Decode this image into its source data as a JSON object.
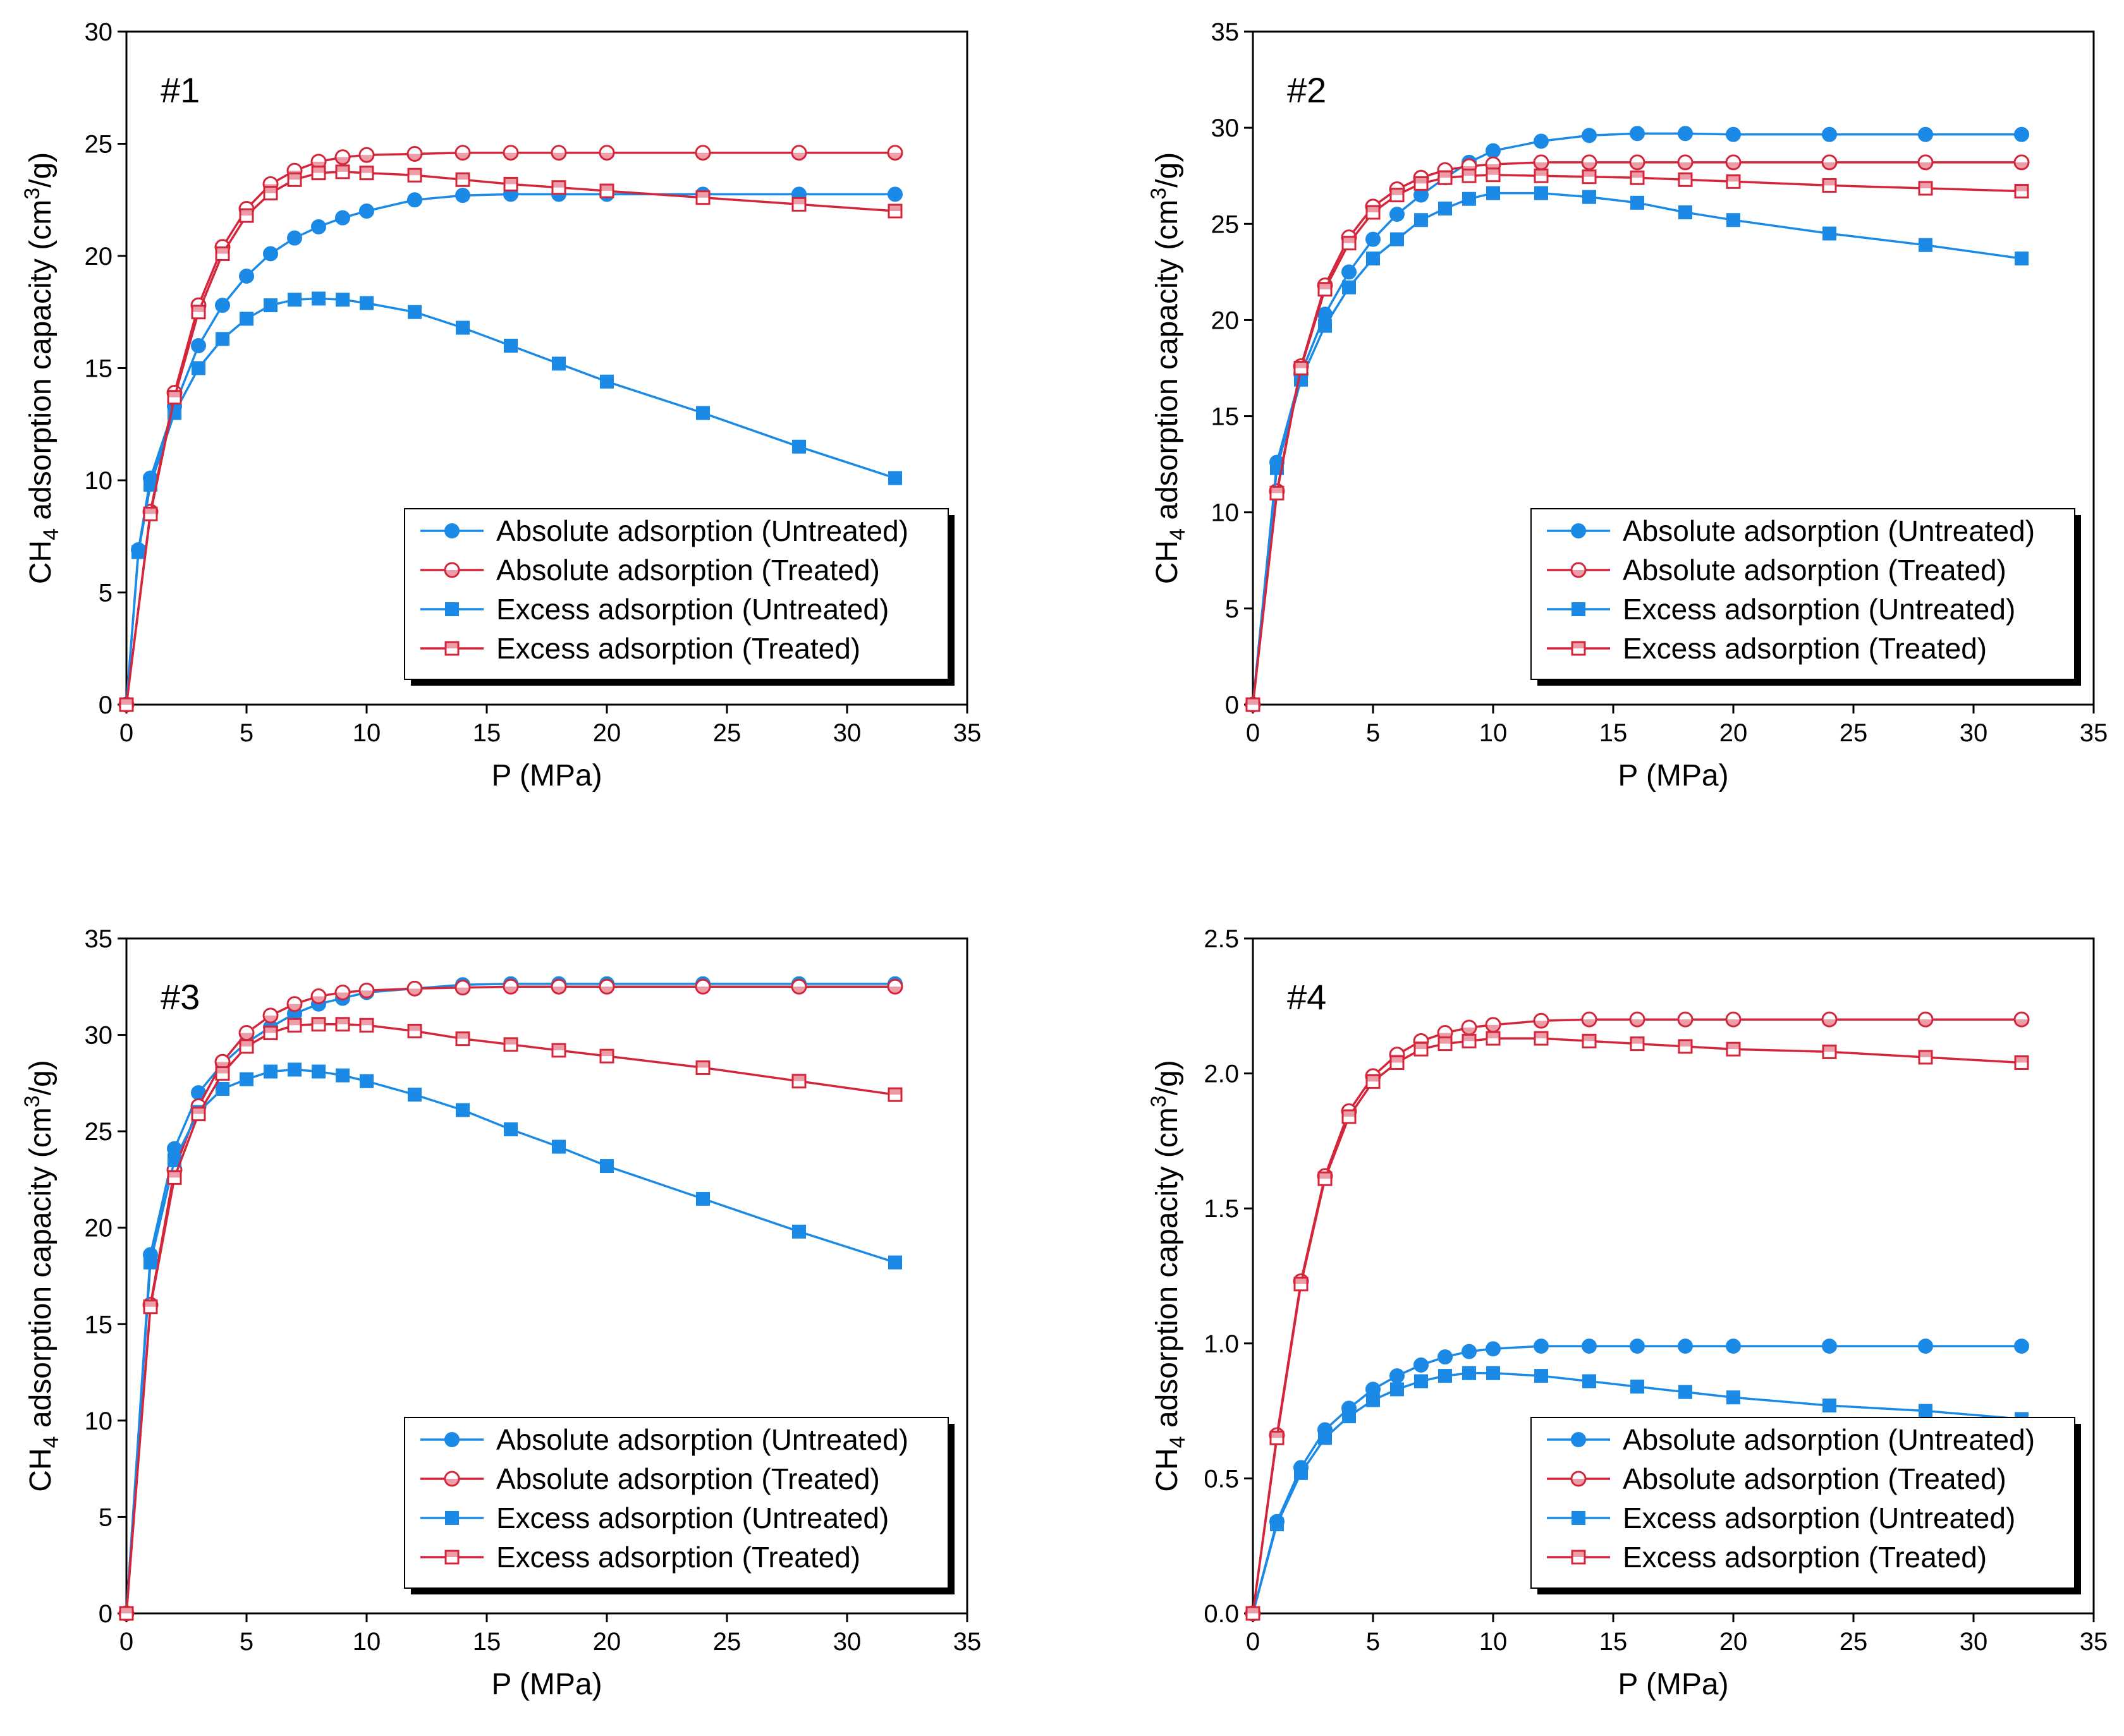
{
  "colors": {
    "untreated": "#1a8ae6",
    "treated": "#d4263b",
    "axis": "#000000",
    "legend_shadow": "#000000"
  },
  "legend_labels": [
    "Absolute adsorption (Untreated)",
    "Absolute adsorption (Treated)",
    "Excess adsorption (Untreated)",
    "Excess adsorption (Treated)"
  ],
  "chart_data": [
    {
      "type": "line",
      "panel_label": "#1",
      "xlabel": "P (MPa)",
      "ylabel": "CH4 adsorption capacity (cm3/g)",
      "xlim": [
        0,
        35
      ],
      "ylim": [
        0,
        30
      ],
      "xticks": [
        0,
        5,
        10,
        15,
        20,
        25,
        30,
        35
      ],
      "yticks": [
        0,
        5,
        10,
        15,
        20,
        25,
        30
      ],
      "grid": false,
      "legend_position": "bottom-right",
      "series": [
        {
          "name": "Absolute adsorption (Untreated)",
          "marker": "circle-filled",
          "color": "untreated",
          "x": [
            0,
            0.5,
            1,
            2,
            3,
            4,
            5,
            6,
            7,
            8,
            9,
            10,
            12,
            14,
            16,
            18,
            20,
            24,
            28,
            32
          ],
          "y": [
            0,
            6.9,
            10.1,
            13.3,
            16.0,
            17.8,
            19.1,
            20.1,
            20.8,
            21.3,
            21.7,
            22.0,
            22.5,
            22.7,
            22.75,
            22.75,
            22.75,
            22.75,
            22.75,
            22.75
          ]
        },
        {
          "name": "Absolute adsorption (Treated)",
          "marker": "circle-open",
          "color": "treated",
          "x": [
            0,
            1,
            2,
            3,
            4,
            5,
            6,
            7,
            8,
            9,
            10,
            12,
            14,
            16,
            18,
            20,
            24,
            28,
            32
          ],
          "y": [
            0,
            8.6,
            13.9,
            17.8,
            20.4,
            22.1,
            23.2,
            23.8,
            24.2,
            24.4,
            24.5,
            24.55,
            24.6,
            24.6,
            24.6,
            24.6,
            24.6,
            24.6,
            24.6
          ]
        },
        {
          "name": "Excess adsorption (Untreated)",
          "marker": "square-filled",
          "color": "untreated",
          "x": [
            0,
            0.5,
            1,
            2,
            3,
            4,
            5,
            6,
            7,
            8,
            9,
            10,
            12,
            14,
            16,
            18,
            20,
            24,
            28,
            32
          ],
          "y": [
            0,
            6.8,
            9.8,
            13.0,
            15.0,
            16.3,
            17.2,
            17.8,
            18.05,
            18.1,
            18.05,
            17.9,
            17.5,
            16.8,
            16.0,
            15.2,
            14.4,
            13.0,
            11.5,
            10.1
          ]
        },
        {
          "name": "Excess adsorption (Treated)",
          "marker": "square-open",
          "color": "treated",
          "x": [
            0,
            1,
            2,
            3,
            4,
            5,
            6,
            7,
            8,
            9,
            10,
            12,
            14,
            16,
            18,
            20,
            24,
            28,
            32
          ],
          "y": [
            0,
            8.5,
            13.7,
            17.5,
            20.1,
            21.8,
            22.8,
            23.4,
            23.7,
            23.75,
            23.7,
            23.6,
            23.4,
            23.2,
            23.05,
            22.9,
            22.6,
            22.3,
            22.0
          ]
        }
      ]
    },
    {
      "type": "line",
      "panel_label": "#2",
      "xlabel": "P (MPa)",
      "ylabel": "CH4 adsorption capacity (cm3/g)",
      "xlim": [
        0,
        35
      ],
      "ylim": [
        0,
        35
      ],
      "xticks": [
        0,
        5,
        10,
        15,
        20,
        25,
        30,
        35
      ],
      "yticks": [
        0,
        5,
        10,
        15,
        20,
        25,
        30,
        35
      ],
      "grid": false,
      "legend_position": "bottom-right",
      "series": [
        {
          "name": "Absolute adsorption (Untreated)",
          "marker": "circle-filled",
          "color": "untreated",
          "x": [
            0,
            1,
            2,
            3,
            4,
            5,
            6,
            7,
            8,
            9,
            10,
            12,
            14,
            16,
            18,
            20,
            24,
            28,
            32
          ],
          "y": [
            0,
            12.6,
            17.2,
            20.3,
            22.5,
            24.2,
            25.5,
            26.5,
            27.4,
            28.2,
            28.8,
            29.3,
            29.6,
            29.7,
            29.7,
            29.65,
            29.65,
            29.65,
            29.65
          ]
        },
        {
          "name": "Absolute adsorption (Treated)",
          "marker": "circle-open",
          "color": "treated",
          "x": [
            0,
            1,
            2,
            3,
            4,
            5,
            6,
            7,
            8,
            9,
            10,
            12,
            14,
            16,
            18,
            20,
            24,
            28,
            32
          ],
          "y": [
            0,
            11.1,
            17.6,
            21.8,
            24.3,
            25.9,
            26.8,
            27.4,
            27.8,
            28.0,
            28.1,
            28.2,
            28.2,
            28.2,
            28.2,
            28.2,
            28.2,
            28.2,
            28.2
          ]
        },
        {
          "name": "Excess adsorption (Untreated)",
          "marker": "square-filled",
          "color": "untreated",
          "x": [
            0,
            1,
            2,
            3,
            4,
            5,
            6,
            7,
            8,
            9,
            10,
            12,
            14,
            16,
            18,
            20,
            24,
            28,
            32
          ],
          "y": [
            0,
            12.3,
            16.9,
            19.7,
            21.7,
            23.2,
            24.2,
            25.2,
            25.8,
            26.3,
            26.6,
            26.6,
            26.4,
            26.1,
            25.6,
            25.2,
            24.5,
            23.9,
            23.2
          ]
        },
        {
          "name": "Excess adsorption (Treated)",
          "marker": "square-open",
          "color": "treated",
          "x": [
            0,
            1,
            2,
            3,
            4,
            5,
            6,
            7,
            8,
            9,
            10,
            12,
            14,
            16,
            18,
            20,
            24,
            28,
            32
          ],
          "y": [
            0,
            11.0,
            17.5,
            21.6,
            24.0,
            25.6,
            26.5,
            27.1,
            27.4,
            27.5,
            27.55,
            27.5,
            27.45,
            27.4,
            27.3,
            27.2,
            27.0,
            26.85,
            26.7
          ]
        }
      ]
    },
    {
      "type": "line",
      "panel_label": "#3",
      "xlabel": "P (MPa)",
      "ylabel": "CH4 adsorption capacity (cm3/g)",
      "xlim": [
        0,
        35
      ],
      "ylim": [
        0,
        35
      ],
      "xticks": [
        0,
        5,
        10,
        15,
        20,
        25,
        30,
        35
      ],
      "yticks": [
        0,
        5,
        10,
        15,
        20,
        25,
        30,
        35
      ],
      "grid": false,
      "legend_position": "bottom-right",
      "series": [
        {
          "name": "Absolute adsorption (Untreated)",
          "marker": "circle-filled",
          "color": "untreated",
          "x": [
            0,
            1,
            2,
            3,
            4,
            5,
            6,
            7,
            8,
            9,
            10,
            12,
            14,
            16,
            18,
            20,
            24,
            28,
            32
          ],
          "y": [
            0,
            18.6,
            24.1,
            27.0,
            28.5,
            29.6,
            30.4,
            31.1,
            31.6,
            31.9,
            32.2,
            32.4,
            32.6,
            32.65,
            32.65,
            32.65,
            32.65,
            32.65,
            32.65
          ]
        },
        {
          "name": "Absolute adsorption (Treated)",
          "marker": "circle-open",
          "color": "treated",
          "x": [
            0,
            1,
            2,
            3,
            4,
            5,
            6,
            7,
            8,
            9,
            10,
            12,
            14,
            16,
            18,
            20,
            24,
            28,
            32
          ],
          "y": [
            0,
            16.0,
            23.0,
            26.3,
            28.6,
            30.1,
            31.0,
            31.6,
            32.0,
            32.2,
            32.3,
            32.4,
            32.45,
            32.5,
            32.5,
            32.5,
            32.5,
            32.5,
            32.5
          ]
        },
        {
          "name": "Excess adsorption (Untreated)",
          "marker": "square-filled",
          "color": "untreated",
          "x": [
            0,
            1,
            2,
            3,
            4,
            5,
            6,
            7,
            8,
            9,
            10,
            12,
            14,
            16,
            18,
            20,
            24,
            28,
            32
          ],
          "y": [
            0,
            18.2,
            23.5,
            26.0,
            27.2,
            27.7,
            28.1,
            28.2,
            28.1,
            27.9,
            27.6,
            26.9,
            26.1,
            25.1,
            24.2,
            23.2,
            21.5,
            19.8,
            18.2
          ]
        },
        {
          "name": "Excess adsorption (Treated)",
          "marker": "square-open",
          "color": "treated",
          "x": [
            0,
            1,
            2,
            3,
            4,
            5,
            6,
            7,
            8,
            9,
            10,
            12,
            14,
            16,
            18,
            20,
            24,
            28,
            32
          ],
          "y": [
            0,
            15.9,
            22.6,
            25.9,
            28.0,
            29.4,
            30.1,
            30.5,
            30.55,
            30.55,
            30.5,
            30.2,
            29.8,
            29.5,
            29.2,
            28.9,
            28.3,
            27.6,
            26.9
          ]
        }
      ]
    },
    {
      "type": "line",
      "panel_label": "#4",
      "xlabel": "P (MPa)",
      "ylabel": "CH4 adsorption capacity (cm3/g)",
      "xlim": [
        0,
        35
      ],
      "ylim": [
        0,
        2.5
      ],
      "xticks": [
        0,
        5,
        10,
        15,
        20,
        25,
        30,
        35
      ],
      "yticks": [
        0.0,
        0.5,
        1.0,
        1.5,
        2.0,
        2.5
      ],
      "grid": false,
      "legend_position": "bottom-right",
      "series": [
        {
          "name": "Absolute adsorption (Untreated)",
          "marker": "circle-filled",
          "color": "untreated",
          "x": [
            0,
            1,
            2,
            3,
            4,
            5,
            6,
            7,
            8,
            9,
            10,
            12,
            14,
            16,
            18,
            20,
            24,
            28,
            32
          ],
          "y": [
            0,
            0.34,
            0.54,
            0.68,
            0.76,
            0.83,
            0.88,
            0.92,
            0.95,
            0.97,
            0.98,
            0.99,
            0.99,
            0.99,
            0.99,
            0.99,
            0.99,
            0.99,
            0.99
          ]
        },
        {
          "name": "Absolute adsorption (Treated)",
          "marker": "circle-open",
          "color": "treated",
          "x": [
            0,
            1,
            2,
            3,
            4,
            5,
            6,
            7,
            8,
            9,
            10,
            12,
            14,
            16,
            18,
            20,
            24,
            28,
            32
          ],
          "y": [
            0,
            0.66,
            1.23,
            1.62,
            1.86,
            1.99,
            2.07,
            2.12,
            2.15,
            2.17,
            2.18,
            2.195,
            2.2,
            2.2,
            2.2,
            2.2,
            2.2,
            2.2,
            2.2
          ]
        },
        {
          "name": "Excess adsorption (Untreated)",
          "marker": "square-filled",
          "color": "untreated",
          "x": [
            0,
            1,
            2,
            3,
            4,
            5,
            6,
            7,
            8,
            9,
            10,
            12,
            14,
            16,
            18,
            20,
            24,
            28,
            32
          ],
          "y": [
            0,
            0.33,
            0.52,
            0.65,
            0.73,
            0.79,
            0.83,
            0.86,
            0.88,
            0.89,
            0.89,
            0.88,
            0.86,
            0.84,
            0.82,
            0.8,
            0.77,
            0.75,
            0.72
          ]
        },
        {
          "name": "Excess adsorption (Treated)",
          "marker": "square-open",
          "color": "treated",
          "x": [
            0,
            1,
            2,
            3,
            4,
            5,
            6,
            7,
            8,
            9,
            10,
            12,
            14,
            16,
            18,
            20,
            24,
            28,
            32
          ],
          "y": [
            0,
            0.65,
            1.22,
            1.61,
            1.84,
            1.97,
            2.04,
            2.09,
            2.11,
            2.12,
            2.13,
            2.13,
            2.12,
            2.11,
            2.1,
            2.09,
            2.08,
            2.06,
            2.04
          ]
        }
      ]
    }
  ]
}
